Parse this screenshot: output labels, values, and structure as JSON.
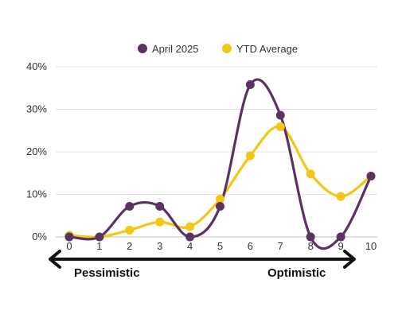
{
  "chart_data": {
    "type": "line",
    "title": "",
    "xlabel": "",
    "ylabel": "",
    "x": [
      0,
      1,
      2,
      3,
      4,
      5,
      6,
      7,
      8,
      9,
      10
    ],
    "x_tick_labels": [
      "0",
      "1",
      "2",
      "3",
      "4",
      "5",
      "6",
      "7",
      "8",
      "9",
      "10"
    ],
    "ylim": [
      0,
      40
    ],
    "y_ticks": [
      0,
      10,
      20,
      30,
      40
    ],
    "y_tick_labels": [
      "0%",
      "10%",
      "20%",
      "30%",
      "40%"
    ],
    "grid": true,
    "legend": "top-center",
    "series": [
      {
        "name": "April 2025",
        "color": "#5b3361",
        "values": [
          0,
          0,
          7.2,
          7.2,
          0,
          7.2,
          35.8,
          28.6,
          0,
          0,
          14.3
        ]
      },
      {
        "name": "YTD Average",
        "color": "#f5c518",
        "values": [
          0.4,
          0,
          1.6,
          3.5,
          2.4,
          8.9,
          19.1,
          25.9,
          14.8,
          9.5,
          14.3
        ]
      }
    ],
    "annotations": {
      "left": "Pessimistic",
      "right": "Optimistic"
    },
    "axis_arrow_color": "#111111"
  }
}
